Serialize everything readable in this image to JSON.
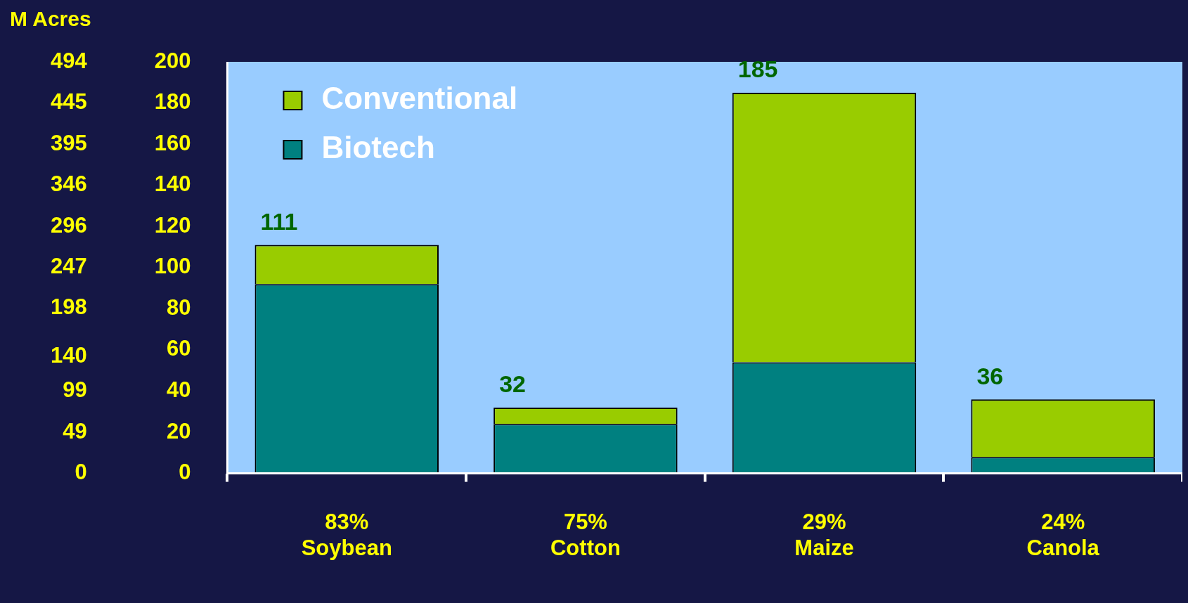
{
  "chart_data": {
    "type": "bar",
    "stacked": true,
    "categories": [
      "83%\nSoybean",
      "75%\nCotton",
      "29%\nMaize",
      "24%\nCanola"
    ],
    "series": [
      {
        "name": "Biotech",
        "color": "#008080",
        "values": [
          92,
          24,
          54,
          8
        ]
      },
      {
        "name": "Conventional",
        "color": "#99cc00",
        "values": [
          19,
          8,
          131,
          28
        ]
      }
    ],
    "totals": [
      "111",
      "32",
      "185",
      "36"
    ],
    "ylim": [
      0,
      200
    ],
    "yticks": [
      0,
      20,
      40,
      60,
      80,
      100,
      120,
      140,
      160,
      180,
      200
    ],
    "y2label": "M Acres",
    "y2lim": [
      0,
      494
    ],
    "y2ticks": [
      0,
      49,
      99,
      140,
      198,
      247,
      296,
      346,
      395,
      445,
      494
    ],
    "legend": "top left",
    "grid": false
  }
}
